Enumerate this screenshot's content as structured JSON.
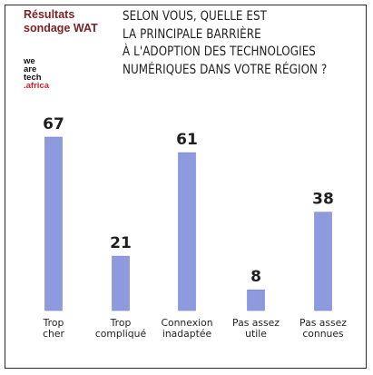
{
  "survey_title": [
    "Résultats",
    "sondage WAT"
  ],
  "logo": {
    "lines": [
      "we",
      "are",
      "tech",
      ".africa"
    ]
  },
  "question": [
    "SELON VOUS, QUELLE EST",
    "LA PRINCIPALE BARRIÈRE",
    "À L'ADOPTION DES TECHNOLOGIES",
    "NUMÉRIQUES DANS VOTRE RÉGION ?"
  ],
  "colors": {
    "bar": "#8e9ade",
    "bar_edge": "#7683cf",
    "survey_title": "#7b2226",
    "logo_accent": "#d1202f",
    "frame": "#2a2a2a"
  },
  "chart_data": {
    "type": "bar",
    "title": "SELON VOUS, QUELLE EST LA PRINCIPALE BARRIÈRE À L'ADOPTION DES TECHNOLOGIES NUMÉRIQUES DANS VOTRE RÉGION ?",
    "categories": [
      [
        "Trop",
        "cher"
      ],
      [
        "Trop",
        "compliqué"
      ],
      [
        "Connexion",
        "inadaptée"
      ],
      [
        "Pas assez",
        "utile"
      ],
      [
        "Pas assez",
        "connues"
      ]
    ],
    "values": [
      67,
      21,
      61,
      8,
      38
    ],
    "xlabel": "",
    "ylabel": "",
    "ylim": [
      0,
      67
    ],
    "grid": false,
    "data_labels": true
  }
}
